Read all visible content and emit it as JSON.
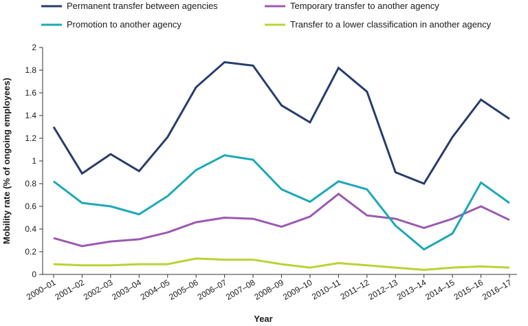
{
  "chart_data": {
    "type": "line",
    "title": "",
    "xlabel": "Year",
    "ylabel": "Mobility rate  (% of ongoing employees)",
    "ylim": [
      0,
      2
    ],
    "yticks": [
      "0",
      "0.2",
      "0.4",
      "0.6",
      "0.8",
      "1",
      "1.2",
      "1.4",
      "1.6",
      "1.8",
      "2"
    ],
    "grid": false,
    "legend_position": "top",
    "categories": [
      "2000–01",
      "2001–02",
      "2002–03",
      "2003–04",
      "2004–05",
      "2005–06",
      "2006–07",
      "2007–08",
      "2008–09",
      "2009–10",
      "2010–11",
      "2011–12",
      "2012–13",
      "2013–14",
      "2014–15",
      "2015–16",
      "2016–17"
    ],
    "series": [
      {
        "name": "Permanent transfer between agencies",
        "color": "#283b6b",
        "values": [
          1.3,
          0.89,
          1.06,
          0.91,
          1.21,
          1.65,
          1.87,
          1.84,
          1.49,
          1.34,
          1.82,
          1.61,
          0.9,
          0.8,
          1.21,
          1.54,
          1.37
        ]
      },
      {
        "name": "Temporary transfer to another agency",
        "color": "#9b59b0",
        "values": [
          0.32,
          0.25,
          0.29,
          0.31,
          0.37,
          0.46,
          0.5,
          0.49,
          0.42,
          0.51,
          0.71,
          0.52,
          0.49,
          0.41,
          0.49,
          0.6,
          0.48
        ]
      },
      {
        "name": "Promotion to another agency",
        "color": "#1aa8b8",
        "values": [
          0.82,
          0.63,
          0.6,
          0.53,
          0.69,
          0.92,
          1.05,
          1.01,
          0.75,
          0.64,
          0.82,
          0.75,
          0.43,
          0.22,
          0.36,
          0.81,
          0.63
        ]
      },
      {
        "name": "Transfer to a lower classification in another agency",
        "color": "#b8d432",
        "values": [
          0.09,
          0.08,
          0.08,
          0.09,
          0.09,
          0.14,
          0.13,
          0.13,
          0.09,
          0.06,
          0.1,
          0.08,
          0.06,
          0.04,
          0.06,
          0.07,
          0.06
        ]
      }
    ]
  }
}
